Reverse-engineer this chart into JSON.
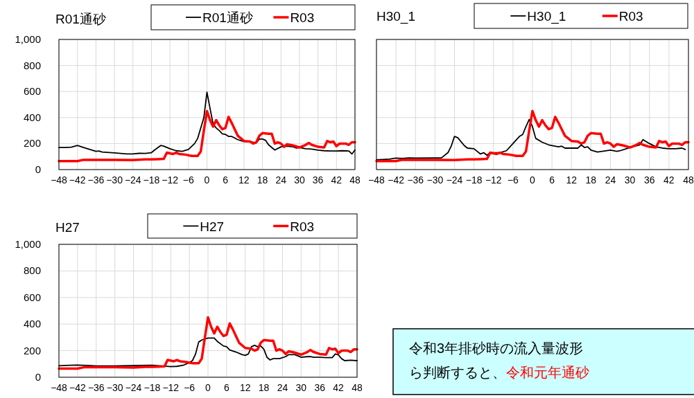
{
  "chart_data": [
    {
      "type": "line",
      "title": "R01通砂",
      "legend": "top right",
      "grid": true,
      "xlim": [
        -48,
        48
      ],
      "xticks": [
        -48,
        -42,
        -36,
        -30,
        -24,
        -18,
        -12,
        -6,
        0,
        6,
        12,
        18,
        24,
        30,
        36,
        42,
        48
      ],
      "ylim": [
        0,
        1000
      ],
      "yticks": [
        0,
        200,
        400,
        600,
        800,
        {
          "value": 1000,
          "label": "1,000"
        }
      ],
      "series": [
        {
          "name": "R01通砂",
          "color": "#000000",
          "x": [
            -48,
            -46,
            -44,
            -42,
            -40,
            -38,
            -36,
            -35,
            -34,
            -30,
            -26,
            -24,
            -22,
            -20,
            -18,
            -17,
            -15,
            -14,
            -12,
            -10,
            -8,
            -6,
            -4,
            -3,
            -2,
            -1,
            0,
            1,
            2,
            3,
            4,
            5,
            6,
            7,
            8,
            10,
            12,
            14,
            16,
            17,
            18,
            19,
            20,
            22,
            24,
            26,
            28,
            29,
            30,
            32,
            34,
            36,
            38,
            40,
            42,
            44,
            46,
            47,
            48
          ],
          "values": [
            170,
            170,
            172,
            185,
            170,
            155,
            140,
            143,
            135,
            128,
            120,
            120,
            125,
            124,
            130,
            150,
            185,
            180,
            160,
            145,
            140,
            155,
            200,
            240,
            320,
            400,
            595,
            470,
            350,
            320,
            300,
            275,
            270,
            255,
            255,
            230,
            215,
            215,
            205,
            235,
            235,
            225,
            190,
            150,
            175,
            180,
            175,
            165,
            170,
            160,
            158,
            150,
            145,
            143,
            143,
            145,
            143,
            120,
            150
          ]
        },
        {
          "name": "R03",
          "color": "#ff0000",
          "x": [
            -48,
            -42,
            -40,
            -36,
            -30,
            -24,
            -20,
            -18,
            -16,
            -14,
            -13,
            -11,
            -10,
            -9,
            -7,
            -5,
            -3,
            -2,
            -1,
            0,
            1,
            2,
            3,
            4,
            5,
            6,
            7,
            8,
            9,
            10,
            12,
            14,
            15,
            16,
            17,
            18,
            20,
            21,
            22,
            23,
            24,
            25,
            26,
            28,
            30,
            32,
            33,
            34,
            36,
            38,
            39,
            40,
            41,
            42,
            43,
            45,
            46,
            47,
            48
          ],
          "values": [
            65,
            65,
            75,
            75,
            75,
            73,
            78,
            78,
            80,
            82,
            130,
            120,
            130,
            120,
            115,
            105,
            105,
            140,
            300,
            450,
            380,
            330,
            380,
            340,
            310,
            320,
            405,
            360,
            310,
            260,
            220,
            215,
            200,
            210,
            260,
            280,
            275,
            275,
            200,
            210,
            200,
            175,
            195,
            185,
            170,
            190,
            205,
            190,
            175,
            170,
            220,
            210,
            215,
            180,
            200,
            200,
            190,
            210,
            210
          ]
        }
      ]
    },
    {
      "type": "line",
      "title": "H30_1",
      "legend": "top right",
      "grid": true,
      "tick_labels": "x",
      "xlim": [
        -48,
        48
      ],
      "xticks": [
        -48,
        -42,
        -36,
        -30,
        -24,
        -18,
        -12,
        -6,
        0,
        6,
        12,
        18,
        24,
        30,
        36,
        42,
        48
      ],
      "ylim": [
        0,
        1000
      ],
      "yticks": [
        0,
        200,
        400,
        600,
        800,
        1000
      ],
      "series": [
        {
          "name": "H30_1",
          "color": "#000000",
          "x": [
            -48,
            -44,
            -42,
            -40,
            -38,
            -36,
            -30,
            -28,
            -26,
            -25,
            -24,
            -23,
            -21,
            -20,
            -18,
            -16,
            -15,
            -14,
            -13,
            -12,
            -10,
            -8,
            -6,
            -4,
            -3,
            -2,
            -1,
            0,
            1,
            3,
            5,
            8,
            9,
            10,
            14,
            15,
            16,
            17,
            18,
            20,
            24,
            26,
            27,
            30,
            33,
            34,
            36,
            38,
            40,
            42,
            44,
            46,
            47
          ],
          "values": [
            75,
            80,
            88,
            85,
            90,
            88,
            90,
            90,
            130,
            180,
            255,
            245,
            185,
            165,
            160,
            120,
            130,
            110,
            130,
            130,
            130,
            145,
            200,
            255,
            270,
            330,
            385,
            330,
            240,
            210,
            190,
            175,
            180,
            165,
            165,
            190,
            170,
            175,
            150,
            135,
            150,
            140,
            145,
            170,
            190,
            230,
            200,
            175,
            165,
            160,
            160,
            165,
            155
          ]
        },
        {
          "name": "R03",
          "color": "#ff0000",
          "x": [
            -48,
            -42,
            -40,
            -36,
            -30,
            -24,
            -20,
            -18,
            -16,
            -14,
            -13,
            -11,
            -10,
            -9,
            -7,
            -5,
            -3,
            -2,
            -1,
            0,
            1,
            2,
            3,
            4,
            5,
            6,
            7,
            8,
            9,
            10,
            12,
            14,
            15,
            16,
            17,
            18,
            20,
            21,
            22,
            23,
            24,
            25,
            26,
            28,
            30,
            32,
            33,
            34,
            36,
            38,
            39,
            40,
            41,
            42,
            43,
            45,
            46,
            47,
            48
          ],
          "values": [
            65,
            65,
            75,
            75,
            75,
            73,
            78,
            78,
            80,
            82,
            130,
            120,
            130,
            120,
            115,
            105,
            105,
            140,
            300,
            450,
            380,
            330,
            380,
            340,
            310,
            320,
            405,
            360,
            310,
            260,
            220,
            215,
            200,
            210,
            260,
            280,
            275,
            275,
            200,
            210,
            200,
            175,
            195,
            185,
            170,
            190,
            205,
            190,
            175,
            170,
            220,
            210,
            215,
            180,
            200,
            200,
            190,
            210,
            210
          ]
        }
      ]
    },
    {
      "type": "line",
      "title": "H27",
      "legend": "top right",
      "grid": true,
      "xlim": [
        -48,
        48
      ],
      "xticks": [
        -48,
        -42,
        -36,
        -30,
        -24,
        -18,
        -12,
        -6,
        0,
        6,
        12,
        18,
        24,
        30,
        36,
        42,
        48
      ],
      "ylim": [
        0,
        1000
      ],
      "yticks": [
        0,
        200,
        400,
        600,
        800,
        {
          "value": 1000,
          "label": "1,000"
        }
      ],
      "series": [
        {
          "name": "H27",
          "color": "#000000",
          "x": [
            -48,
            -44,
            -42,
            -38,
            -36,
            -30,
            -24,
            -18,
            -15,
            -12,
            -10,
            -8,
            -6,
            -5,
            -4,
            -3,
            -2,
            0,
            2,
            3,
            5,
            6,
            7,
            9,
            11,
            12,
            13,
            14,
            15,
            16,
            17,
            18,
            19,
            20,
            21,
            23,
            25,
            26,
            28,
            30,
            32,
            33,
            34,
            36,
            38,
            40,
            41,
            42,
            43,
            44,
            46,
            48
          ],
          "values": [
            87,
            90,
            92,
            88,
            85,
            85,
            88,
            90,
            85,
            80,
            82,
            90,
            110,
            125,
            175,
            265,
            280,
            295,
            295,
            270,
            235,
            230,
            205,
            190,
            170,
            165,
            175,
            230,
            240,
            230,
            235,
            210,
            150,
            130,
            140,
            140,
            155,
            170,
            170,
            150,
            155,
            155,
            150,
            150,
            148,
            148,
            175,
            168,
            140,
            125,
            128,
            125
          ]
        },
        {
          "name": "R03",
          "color": "#ff0000",
          "x": [
            -48,
            -42,
            -40,
            -36,
            -30,
            -24,
            -20,
            -18,
            -16,
            -14,
            -13,
            -11,
            -10,
            -9,
            -7,
            -5,
            -3,
            -2,
            -1,
            0,
            1,
            2,
            3,
            4,
            5,
            6,
            7,
            8,
            9,
            10,
            12,
            14,
            15,
            16,
            17,
            18,
            20,
            21,
            22,
            23,
            24,
            25,
            26,
            28,
            30,
            32,
            33,
            34,
            36,
            38,
            39,
            40,
            41,
            42,
            43,
            45,
            46,
            47,
            48
          ],
          "values": [
            65,
            65,
            75,
            75,
            75,
            73,
            78,
            78,
            80,
            82,
            130,
            120,
            130,
            120,
            115,
            105,
            105,
            140,
            300,
            450,
            380,
            330,
            380,
            340,
            310,
            320,
            405,
            360,
            310,
            260,
            220,
            215,
            200,
            210,
            260,
            280,
            275,
            275,
            200,
            210,
            200,
            175,
            195,
            185,
            170,
            190,
            205,
            190,
            175,
            170,
            220,
            210,
            215,
            180,
            200,
            200,
            190,
            210,
            210
          ]
        }
      ]
    },
    {
      "type": "other",
      "annotations": [
        "令和3年排砂時の流入量波形",
        "ら判断すると、",
        "令和元年通砂"
      ]
    }
  ]
}
